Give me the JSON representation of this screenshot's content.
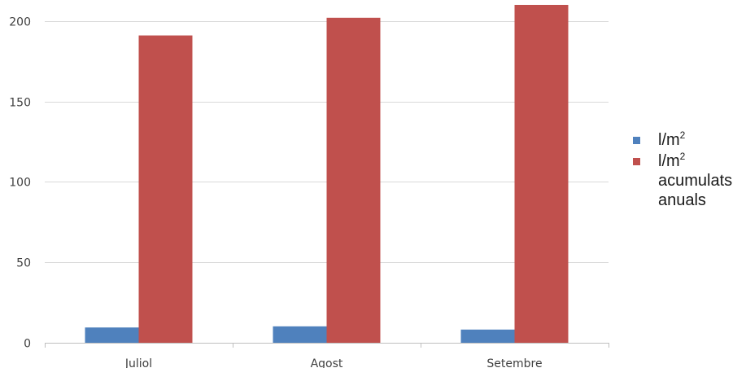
{
  "chart_data": {
    "type": "bar",
    "title": "",
    "xlabel": "",
    "ylabel": "",
    "categories": [
      "Juliol",
      "Agost",
      "Setembre"
    ],
    "ylim": [
      0,
      210
    ],
    "yticks": [
      "0",
      "50",
      "100",
      "150",
      "200"
    ],
    "grid": true,
    "legend_position": "right",
    "series": [
      {
        "name": "l/m2",
        "color": "#4F81BD",
        "values": [
          9.5,
          10.2,
          8.2
        ]
      },
      {
        "name": "l/m2 acumulats anuals",
        "color": "#C0504D",
        "values": [
          191,
          202,
          210
        ]
      }
    ]
  },
  "legend": [
    {
      "label": "l/m",
      "sup": "2",
      "extra": ""
    },
    {
      "label": "l/m",
      "sup": "2",
      "extra": "acumulats anuals"
    }
  ]
}
